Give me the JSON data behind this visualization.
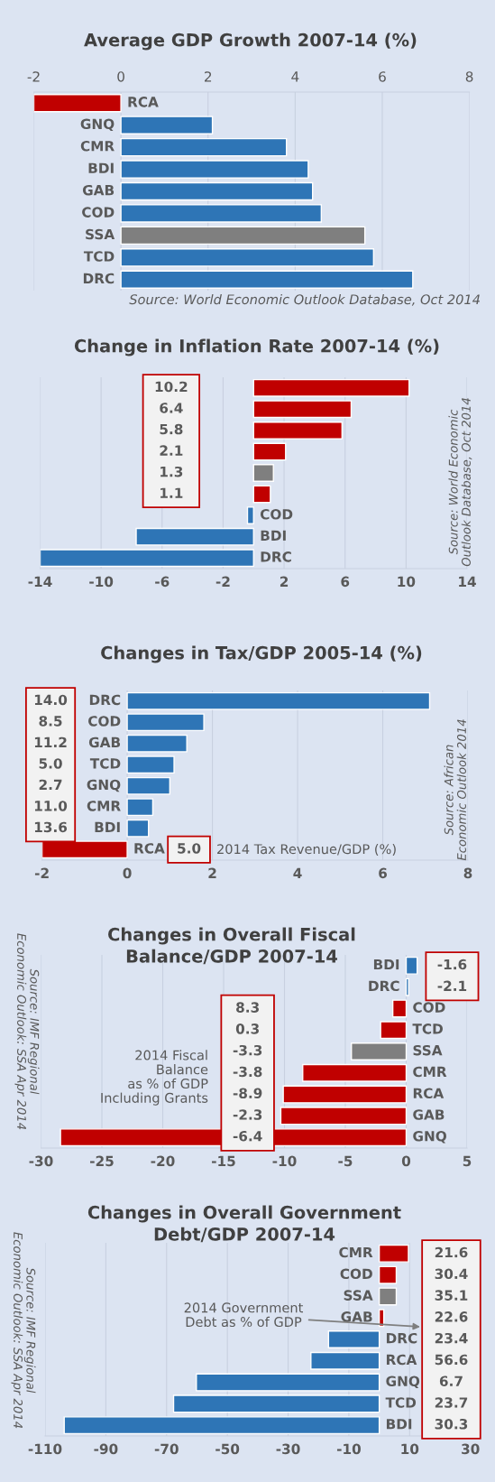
{
  "chart_data": [
    {
      "type": "bar",
      "orientation": "horizontal",
      "title": "Average GDP Growth 2007-14 (%)",
      "categories": [
        "RCA",
        "GNQ",
        "CMR",
        "BDI",
        "GAB",
        "COD",
        "SSA",
        "TCD",
        "DRC"
      ],
      "values": [
        -2.0,
        2.1,
        3.8,
        4.3,
        4.4,
        4.6,
        5.6,
        5.8,
        6.7
      ],
      "colors": [
        "#c00000",
        "#2e75b6",
        "#2e75b6",
        "#2e75b6",
        "#2e75b6",
        "#2e75b6",
        "#7f7f7f",
        "#2e75b6",
        "#2e75b6"
      ],
      "xlim": [
        -2,
        8
      ],
      "xticks": [
        -2,
        0,
        2,
        4,
        6,
        8
      ],
      "grid": "x",
      "annotations": [
        "Source: World Economic Outlook Database, Oct 2014"
      ]
    },
    {
      "type": "bar",
      "orientation": "horizontal",
      "title": "Change in Inflation Rate 2007-14 (%)",
      "categories": [
        null,
        null,
        null,
        null,
        null,
        null,
        "COD",
        "BDI",
        "DRC"
      ],
      "values": [
        10.2,
        6.4,
        5.8,
        2.1,
        1.3,
        1.1,
        -0.4,
        -7.7,
        -14.0
      ],
      "colors": [
        "#c00000",
        "#c00000",
        "#c00000",
        "#c00000",
        "#7f7f7f",
        "#c00000",
        "#2e75b6",
        "#2e75b6",
        "#2e75b6"
      ],
      "value_labels": [
        "10.2",
        "6.4",
        "5.8",
        "2.1",
        "1.3",
        "1.1",
        null,
        null,
        null
      ],
      "xlim": [
        -14,
        14
      ],
      "xticks": [
        -14,
        -10,
        -6,
        -2,
        2,
        6,
        10,
        14
      ],
      "grid": "x",
      "annotations": [
        "Source: World Economic\nOutlook Database, Oct 2014"
      ]
    },
    {
      "type": "bar",
      "orientation": "horizontal",
      "title": "Changes in Tax/GDP 2005-14 (%)",
      "categories": [
        "DRC",
        "COD",
        "GAB",
        "TCD",
        "GNQ",
        "CMR",
        "BDI",
        "RCA"
      ],
      "values": [
        7.1,
        1.8,
        1.4,
        1.1,
        1.0,
        0.6,
        0.5,
        -2.0
      ],
      "colors": [
        "#2e75b6",
        "#2e75b6",
        "#2e75b6",
        "#2e75b6",
        "#2e75b6",
        "#2e75b6",
        "#2e75b6",
        "#c00000"
      ],
      "xlim": [
        -2,
        8
      ],
      "xticks": [
        -2,
        0,
        2,
        4,
        6,
        8
      ],
      "grid": "x",
      "annotations": [
        "14.0",
        "8.5",
        "11.2",
        "5.0",
        "2.7",
        "11.0",
        "13.6",
        "5.0",
        "2014 Tax Revenue/GDP (%)",
        "Source: African\nEconomic Outlook 2014"
      ]
    },
    {
      "type": "bar",
      "orientation": "horizontal",
      "title": "Changes in Overall Fiscal\nBalance/GDP 2007-14",
      "categories": [
        "BDI",
        "DRC",
        "COD",
        "TCD",
        "SSA",
        "CMR",
        "RCA",
        "GAB",
        "GNQ"
      ],
      "values": [
        0.9,
        0.2,
        -1.1,
        -2.1,
        -4.5,
        -8.5,
        -10.1,
        -10.3,
        -28.4
      ],
      "colors": [
        "#2e75b6",
        "#2e75b6",
        "#c00000",
        "#c00000",
        "#7f7f7f",
        "#c00000",
        "#c00000",
        "#c00000",
        "#c00000"
      ],
      "xlim": [
        -30,
        5
      ],
      "xticks": [
        -30,
        -25,
        -20,
        -15,
        -10,
        -5,
        0,
        5
      ],
      "grid": "x",
      "annotations": [
        "-1.6",
        "-2.1",
        "8.3",
        "0.3",
        "-3.3",
        "-3.8",
        "-8.9",
        "-2.3",
        "-6.4",
        "2014 Fiscal\nBalance\nas % of GDP\nIncluding Grants",
        "Source: IMF Regional\nEconomic Outlook: SSA Apr 2014"
      ]
    },
    {
      "type": "bar",
      "orientation": "horizontal",
      "title": "Changes in Overall Government\nDebt/GDP 2007-14",
      "categories": [
        "CMR",
        "COD",
        "SSA",
        "GAB",
        "DRC",
        "RCA",
        "GNQ",
        "TCD",
        "BDI"
      ],
      "values": [
        9.6,
        5.6,
        5.6,
        1.5,
        -16.7,
        -22.5,
        -60.2,
        -67.7,
        -103.7
      ],
      "colors": [
        "#c00000",
        "#c00000",
        "#7f7f7f",
        "#c00000",
        "#2e75b6",
        "#2e75b6",
        "#2e75b6",
        "#2e75b6",
        "#2e75b6"
      ],
      "xlim": [
        -110,
        30
      ],
      "xticks": [
        -110,
        -90,
        -70,
        -50,
        -30,
        -10,
        10,
        30
      ],
      "grid": "x",
      "annotations": [
        "21.6",
        "30.4",
        "35.1",
        "22.6",
        "23.4",
        "56.6",
        "6.7",
        "23.7",
        "30.3",
        "2014 Government\nDebt as % of GDP",
        "Source: IMF Regional\nEconomic Outlook: SSA Apr 2014"
      ]
    }
  ]
}
